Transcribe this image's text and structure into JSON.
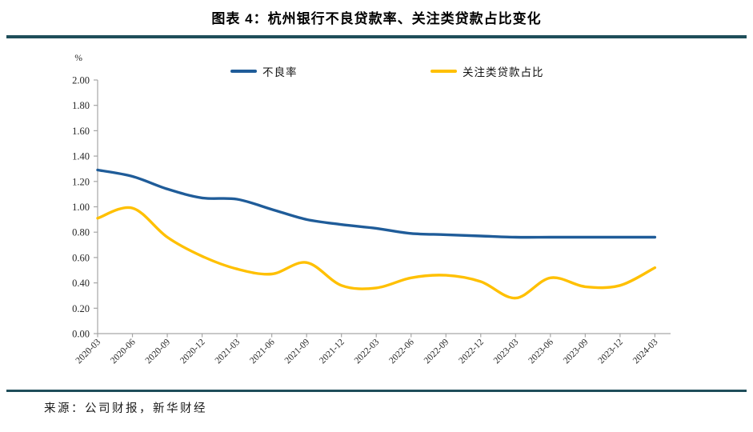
{
  "header": {
    "title": "图表 4：杭州银行不良贷款率、关注类贷款占比变化"
  },
  "chart_data": {
    "type": "line",
    "title": "图表 4：杭州银行不良贷款率、关注类贷款占比变化",
    "unit_label": "%",
    "categories": [
      "2020-03",
      "2020-06",
      "2020-09",
      "2020-12",
      "2021-03",
      "2021-06",
      "2021-09",
      "2021-12",
      "2022-03",
      "2022-06",
      "2022-09",
      "2022-12",
      "2023-03",
      "2023-06",
      "2023-09",
      "2023-12",
      "2024-03"
    ],
    "series": [
      {
        "name": "不良率",
        "color": "#1F5C99",
        "values": [
          1.29,
          1.24,
          1.14,
          1.07,
          1.06,
          0.98,
          0.9,
          0.86,
          0.83,
          0.79,
          0.78,
          0.77,
          0.76,
          0.76,
          0.76,
          0.76,
          0.76
        ]
      },
      {
        "name": "关注类贷款占比",
        "color": "#FFC000",
        "values": [
          0.91,
          0.99,
          0.76,
          0.61,
          0.51,
          0.47,
          0.56,
          0.38,
          0.36,
          0.44,
          0.46,
          0.41,
          0.28,
          0.44,
          0.37,
          0.38,
          0.52
        ]
      }
    ],
    "ylim": [
      0,
      2.0
    ],
    "ytick_labels": [
      "0.00",
      "0.20",
      "0.40",
      "0.60",
      "0.80",
      "1.00",
      "1.20",
      "1.40",
      "1.60",
      "1.80",
      "2.00"
    ],
    "legend_position": "top",
    "grid": false,
    "smooth": true
  },
  "source": {
    "text": "来源：公司财报，新华财经"
  },
  "colors": {
    "divider": "#1F4E5A",
    "axis": "#A6A6A6",
    "tick_text": "#262626"
  }
}
